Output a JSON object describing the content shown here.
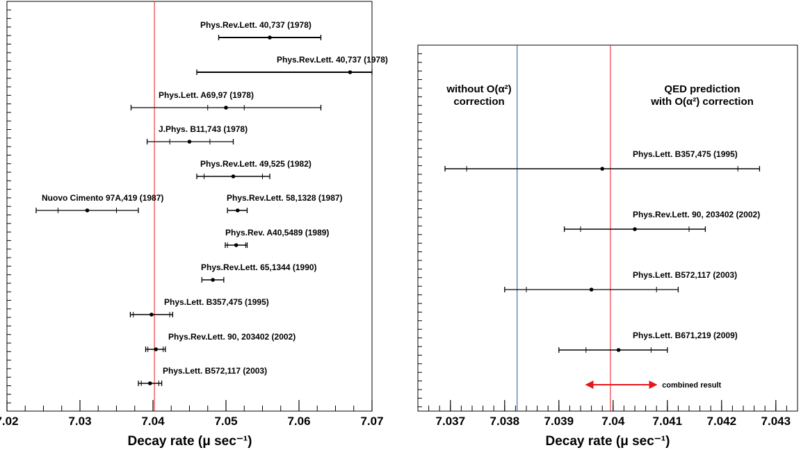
{
  "chart_data": [
    {
      "type": "scatter",
      "xlabel": "Decay rate (μ sec⁻¹)",
      "xlim": [
        7.02,
        7.07
      ],
      "x_ticks": [
        "7.02",
        "7.03",
        "7.04",
        "7.05",
        "7.06",
        "7.07"
      ],
      "reference_line": {
        "x": 7.0402,
        "color": "#e8151b"
      },
      "series": [
        {
          "label": "Phys.Rev.Lett. 40,737 (1978)",
          "x": 7.056,
          "inner": [
            7.049,
            7.063
          ],
          "outer": [
            7.049,
            7.063
          ]
        },
        {
          "label": "Phys.Rev.Lett. 40,737 (1978)",
          "x": 7.067,
          "inner": [
            7.046,
            7.07
          ],
          "outer": [
            7.046,
            7.07
          ]
        },
        {
          "label": "Phys.Lett. A69,97 (1978)",
          "x": 7.05,
          "inner": [
            7.0475,
            7.0525
          ],
          "outer": [
            7.037,
            7.063
          ]
        },
        {
          "label": "J.Phys. B11,743 (1978)",
          "x": 7.045,
          "inner": [
            7.0423,
            7.0478
          ],
          "outer": [
            7.0392,
            7.051
          ]
        },
        {
          "label": "Phys.Rev.Lett. 49,525 (1982)",
          "x": 7.051,
          "inner": [
            7.047,
            7.055
          ],
          "outer": [
            7.046,
            7.056
          ]
        },
        {
          "label": "Nuovo Cimento 97A,419 (1987)",
          "x": 7.031,
          "inner": [
            7.027,
            7.035
          ],
          "outer": [
            7.024,
            7.038
          ]
        },
        {
          "label": "Phys.Rev.Lett. 58,1328 (1987)",
          "x": 7.0516,
          "inner": [
            7.0502,
            7.0529
          ],
          "outer": [
            7.0502,
            7.0529
          ]
        },
        {
          "label": "Phys.Rev. A40,5489 (1989)",
          "x": 7.0514,
          "inner": [
            7.0502,
            7.0527
          ],
          "outer": [
            7.0499,
            7.0529
          ]
        },
        {
          "label": "Phys.Rev.Lett. 65,1344 (1990)",
          "x": 7.0482,
          "inner": [
            7.0467,
            7.0497
          ],
          "outer": [
            7.0467,
            7.0497
          ]
        },
        {
          "label": "Phys.Lett. B357,475 (1995)",
          "x": 7.0398,
          "inner": [
            7.0373,
            7.0423
          ],
          "outer": [
            7.0369,
            7.0427
          ]
        },
        {
          "label": "Phys.Rev.Lett. 90, 203402 (2002)",
          "x": 7.0404,
          "inner": [
            7.0393,
            7.0414
          ],
          "outer": [
            7.039,
            7.0417
          ]
        },
        {
          "label": "Phys.Lett. B572,117 (2003)",
          "x": 7.0396,
          "inner": [
            7.0384,
            7.0408
          ],
          "outer": [
            7.038,
            7.0412
          ]
        }
      ]
    },
    {
      "type": "scatter",
      "xlabel": "Decay rate (μ sec⁻¹)",
      "xlim": [
        7.0364,
        7.0434
      ],
      "x_ticks": [
        "7.037",
        "7.038",
        "7.039",
        "7.04",
        "7.041",
        "7.042",
        "7.043"
      ],
      "reference_lines": [
        {
          "x": 7.03823,
          "color": "#1f4e9c",
          "label_lines": [
            "without O(α²)",
            "correction"
          ]
        },
        {
          "x": 7.03995,
          "color": "#e8151b",
          "label_lines": [
            "QED prediction",
            "with O(α²) correction"
          ]
        }
      ],
      "series": [
        {
          "label": "Phys.Lett. B357,475 (1995)",
          "x": 7.0398,
          "inner": [
            7.0373,
            7.0423
          ],
          "outer": [
            7.0369,
            7.0427
          ]
        },
        {
          "label": "Phys.Rev.Lett. 90, 203402 (2002)",
          "x": 7.0404,
          "inner": [
            7.0394,
            7.0414
          ],
          "outer": [
            7.0391,
            7.0417
          ]
        },
        {
          "label": "Phys.Lett. B572,117 (2003)",
          "x": 7.0396,
          "inner": [
            7.0384,
            7.0408
          ],
          "outer": [
            7.038,
            7.0412
          ]
        },
        {
          "label": "Phys.Lett. B671,219 (2009)",
          "x": 7.0401,
          "inner": [
            7.0395,
            7.0407
          ],
          "outer": [
            7.039,
            7.041
          ]
        }
      ],
      "combined_result": {
        "label": "combined result",
        "range": [
          7.0395,
          7.0408
        ],
        "color": "#e8151b"
      }
    }
  ]
}
